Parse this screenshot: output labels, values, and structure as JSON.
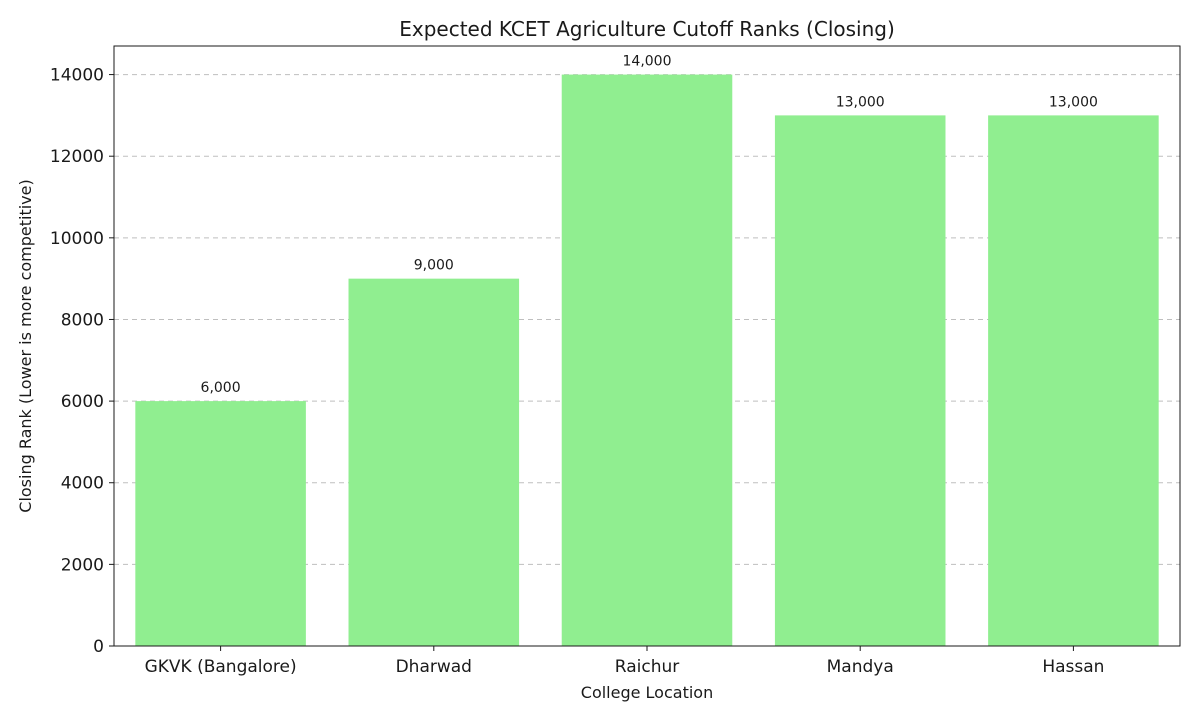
{
  "chart_data": {
    "type": "bar",
    "title": "Expected KCET Agriculture Cutoff Ranks (Closing)",
    "xlabel": "College Location",
    "ylabel": "Closing Rank (Lower is more competitive)",
    "categories": [
      "GKVK (Bangalore)",
      "Dharwad",
      "Raichur",
      "Mandya",
      "Hassan"
    ],
    "values": [
      6000,
      9000,
      14000,
      13000,
      13000
    ],
    "value_labels": [
      "6,000",
      "9,000",
      "14,000",
      "13,000",
      "13,000"
    ],
    "ylim": [
      0,
      14700
    ],
    "yticks": [
      0,
      2000,
      4000,
      6000,
      8000,
      10000,
      12000,
      14000
    ],
    "ytick_labels": [
      "0",
      "2000",
      "4000",
      "6000",
      "8000",
      "10000",
      "12000",
      "14000"
    ],
    "grid": "y-dashed",
    "bar_color": "#90EE90",
    "grid_color": "#bfbfbf",
    "axis_color": "#1a1a1a"
  }
}
